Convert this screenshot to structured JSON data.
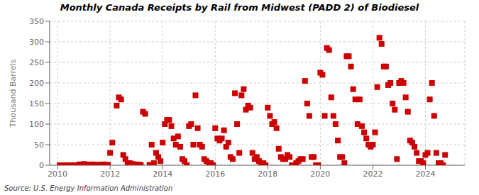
{
  "chart_data": {
    "type": "scatter",
    "title": "Monthly Canada Receipts by Rail from Midwest (PADD 2) of Biodiesel",
    "y_label": "Thousand Barrels",
    "annotations": [
      "Source: U.S. Energy Information Administration"
    ],
    "color": "#cc0000",
    "marker": "square",
    "grid": true,
    "xlim": [
      2009.7,
      2025.5
    ],
    "ylim": [
      0,
      350
    ],
    "xticks": [
      2010,
      2012,
      2014,
      2016,
      2018,
      2020,
      2022,
      2024
    ],
    "yticks": [
      0,
      50,
      100,
      150,
      200,
      250,
      300,
      350
    ],
    "x": [
      2010.083,
      2010.167,
      2010.25,
      2010.333,
      2010.417,
      2010.5,
      2010.583,
      2010.667,
      2010.75,
      2010.833,
      2010.917,
      2011.0,
      2011.083,
      2011.167,
      2011.25,
      2011.333,
      2011.417,
      2011.5,
      2011.583,
      2011.667,
      2011.75,
      2011.833,
      2011.917,
      2012.0,
      2012.083,
      2012.25,
      2012.333,
      2012.417,
      2012.5,
      2012.583,
      2012.667,
      2012.75,
      2012.833,
      2012.917,
      2013.0,
      2013.083,
      2013.167,
      2013.25,
      2013.333,
      2013.5,
      2013.583,
      2013.667,
      2013.75,
      2013.833,
      2013.917,
      2014.0,
      2014.083,
      2014.167,
      2014.25,
      2014.333,
      2014.417,
      2014.5,
      2014.583,
      2014.667,
      2014.75,
      2014.833,
      2014.917,
      2015.0,
      2015.083,
      2015.167,
      2015.25,
      2015.333,
      2015.417,
      2015.5,
      2015.583,
      2015.667,
      2015.75,
      2015.833,
      2015.917,
      2016.0,
      2016.083,
      2016.167,
      2016.25,
      2016.333,
      2016.417,
      2016.5,
      2016.583,
      2016.667,
      2016.75,
      2016.833,
      2016.917,
      2017.0,
      2017.083,
      2017.167,
      2017.25,
      2017.333,
      2017.417,
      2017.5,
      2017.583,
      2017.667,
      2017.75,
      2017.833,
      2017.917,
      2018.0,
      2018.083,
      2018.167,
      2018.25,
      2018.333,
      2018.417,
      2018.5,
      2018.583,
      2018.667,
      2018.75,
      2018.833,
      2018.917,
      2019.0,
      2019.083,
      2019.167,
      2019.25,
      2019.333,
      2019.417,
      2019.5,
      2019.583,
      2019.667,
      2019.75,
      2019.833,
      2019.917,
      2020.0,
      2020.083,
      2020.167,
      2020.25,
      2020.333,
      2020.417,
      2020.5,
      2020.583,
      2020.667,
      2020.75,
      2020.833,
      2020.917,
      2021.0,
      2021.083,
      2021.167,
      2021.25,
      2021.333,
      2021.417,
      2021.5,
      2021.583,
      2021.667,
      2021.75,
      2021.833,
      2021.917,
      2022.0,
      2022.083,
      2022.167,
      2022.25,
      2022.333,
      2022.417,
      2022.5,
      2022.583,
      2022.667,
      2022.75,
      2022.833,
      2022.917,
      2023.0,
      2023.083,
      2023.167,
      2023.25,
      2023.333,
      2023.417,
      2023.5,
      2023.583,
      2023.667,
      2023.75,
      2023.833,
      2023.917,
      2024.0,
      2024.083,
      2024.167,
      2024.25,
      2024.333,
      2024.417,
      2024.5,
      2024.583,
      2024.667,
      2024.75
    ],
    "values": [
      0,
      0,
      0,
      0,
      0,
      0,
      0,
      0,
      0,
      2,
      1,
      3,
      2,
      1,
      1,
      2,
      1,
      1,
      1,
      1,
      2,
      1,
      1,
      30,
      55,
      145,
      165,
      160,
      25,
      15,
      5,
      5,
      3,
      2,
      2,
      1,
      1,
      130,
      125,
      1,
      50,
      5,
      30,
      20,
      10,
      55,
      100,
      110,
      110,
      95,
      65,
      50,
      70,
      45,
      15,
      10,
      0,
      95,
      100,
      50,
      170,
      90,
      50,
      45,
      15,
      10,
      5,
      5,
      0,
      90,
      65,
      60,
      65,
      85,
      45,
      55,
      20,
      15,
      175,
      100,
      30,
      170,
      185,
      135,
      145,
      140,
      30,
      15,
      20,
      10,
      0,
      5,
      0,
      140,
      120,
      100,
      105,
      90,
      40,
      20,
      15,
      15,
      25,
      20,
      0,
      0,
      5,
      10,
      15,
      15,
      205,
      150,
      120,
      20,
      20,
      0,
      0,
      225,
      220,
      120,
      285,
      280,
      165,
      120,
      100,
      60,
      20,
      20,
      5,
      265,
      265,
      240,
      185,
      160,
      100,
      160,
      95,
      80,
      65,
      50,
      45,
      50,
      80,
      190,
      310,
      295,
      240,
      240,
      195,
      200,
      150,
      135,
      15,
      200,
      205,
      200,
      165,
      130,
      60,
      55,
      45,
      30,
      10,
      10,
      5,
      25,
      30,
      160,
      200,
      120,
      30,
      5,
      5,
      0,
      25
    ]
  }
}
